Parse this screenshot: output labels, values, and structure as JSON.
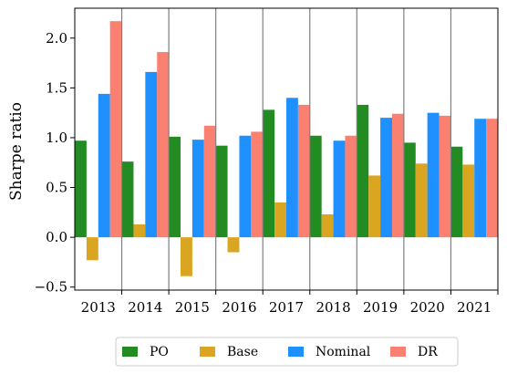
{
  "chart_data": {
    "type": "bar",
    "title": "",
    "xlabel": "",
    "ylabel": "Sharpe ratio",
    "categories": [
      "2013",
      "2014",
      "2015",
      "2016",
      "2017",
      "2018",
      "2019",
      "2020",
      "2021"
    ],
    "series": [
      {
        "name": "PO",
        "color": "#228b22",
        "values": [
          0.97,
          0.76,
          1.01,
          0.92,
          1.28,
          1.02,
          1.33,
          0.95,
          0.91
        ]
      },
      {
        "name": "Base",
        "color": "#daa520",
        "values": [
          -0.23,
          0.13,
          -0.39,
          -0.15,
          0.35,
          0.23,
          0.62,
          0.74,
          0.73
        ]
      },
      {
        "name": "Nominal",
        "color": "#1e90ff",
        "values": [
          1.44,
          1.66,
          0.98,
          1.02,
          1.4,
          0.97,
          1.2,
          1.25,
          1.19
        ]
      },
      {
        "name": "DR",
        "color": "#fa8072",
        "values": [
          2.17,
          1.86,
          1.12,
          1.06,
          1.33,
          1.02,
          1.24,
          1.22,
          1.19
        ]
      }
    ],
    "ylim": [
      -0.53,
      2.3
    ],
    "yticks": [
      "−0.5",
      "0.0",
      "0.5",
      "1.0",
      "1.5",
      "2.0"
    ],
    "ytick_values": [
      -0.5,
      0,
      0.5,
      1.0,
      1.5,
      2.0
    ],
    "grid": false,
    "legend_position": "bottom-center"
  }
}
